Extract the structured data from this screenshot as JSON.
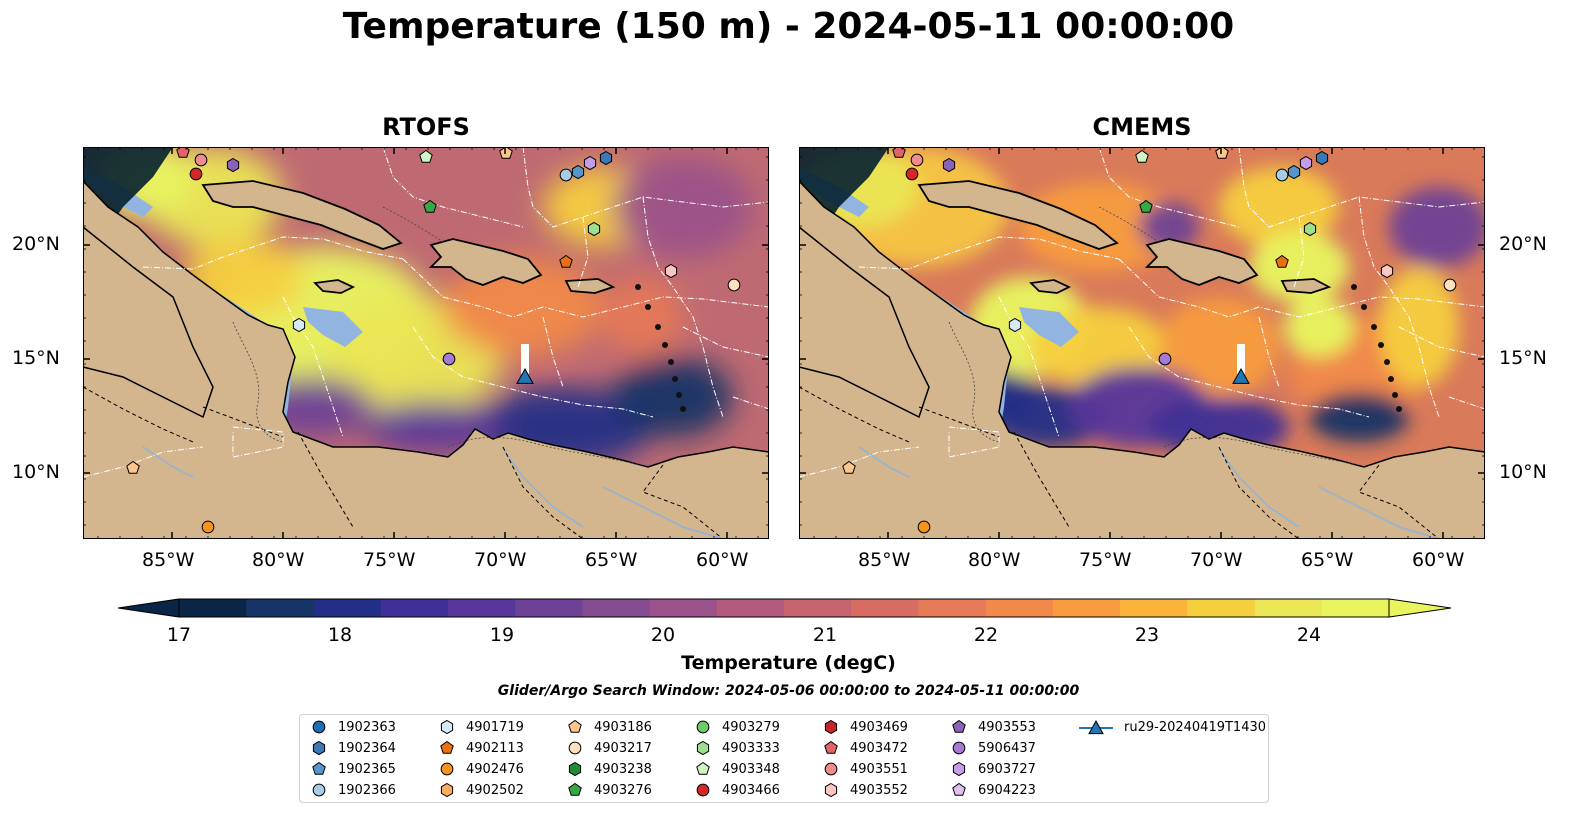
{
  "figure": {
    "title": "Temperature (150 m) - 2024-05-11 00:00:00",
    "panels": [
      {
        "title": "RTOFS",
        "variant": "rtofs"
      },
      {
        "title": "CMEMS",
        "variant": "cmems"
      }
    ],
    "lon_ticks": [
      "85°W",
      "80°W",
      "75°W",
      "70°W",
      "65°W",
      "60°W"
    ],
    "lat_ticks": [
      "20°N",
      "15°N",
      "10°N"
    ],
    "colorbar": {
      "label": "Temperature (degC)",
      "ticks": [
        "17",
        "18",
        "19",
        "20",
        "21",
        "22",
        "23",
        "24"
      ],
      "colors": [
        "#0b2546",
        "#163466",
        "#232e87",
        "#3e3096",
        "#58379a",
        "#6d4296",
        "#844b91",
        "#9b5189",
        "#b25a7e",
        "#c5636f",
        "#d76c62",
        "#e67956",
        "#f1894a",
        "#f89c3f",
        "#fbb339",
        "#f6cf3e",
        "#eae654",
        "#e8f55f"
      ]
    },
    "search_window": "Glider/Argo Search Window: 2024-05-06 00:00:00 to 2024-05-11 00:00:00",
    "map_colors": {
      "land": "#d3b68e",
      "shelf": "#92b4e0",
      "deep_ocean": "#04202f",
      "coast": "#000000",
      "boundary": "#ffffff"
    }
  },
  "legend": [
    {
      "label": "1902363",
      "marker": "circle",
      "color": "#1f6fb4"
    },
    {
      "label": "1902364",
      "marker": "hexagon",
      "color": "#3a79b4"
    },
    {
      "label": "1902365",
      "marker": "pentagon",
      "color": "#5596cc"
    },
    {
      "label": "1902366",
      "marker": "circle",
      "color": "#a8cbe8"
    },
    {
      "label": "4901719",
      "marker": "hexagon",
      "color": "#d7e8f6"
    },
    {
      "label": "4902113",
      "marker": "pentagon",
      "color": "#e8700f"
    },
    {
      "label": "4902476",
      "marker": "circle",
      "color": "#f7941d"
    },
    {
      "label": "4902502",
      "marker": "hexagon",
      "color": "#fbad60"
    },
    {
      "label": "4903186",
      "marker": "pentagon",
      "color": "#fcc58d"
    },
    {
      "label": "4903217",
      "marker": "circle",
      "color": "#fde0c0"
    },
    {
      "label": "4903238",
      "marker": "hexagon",
      "color": "#238b32"
    },
    {
      "label": "4903276",
      "marker": "pentagon",
      "color": "#36a845"
    },
    {
      "label": "4903279",
      "marker": "circle",
      "color": "#6fca6a"
    },
    {
      "label": "4903333",
      "marker": "hexagon",
      "color": "#9fdd8f"
    },
    {
      "label": "4903348",
      "marker": "pentagon",
      "color": "#cff5c4"
    },
    {
      "label": "4903466",
      "marker": "circle",
      "color": "#d62728"
    },
    {
      "label": "4903469",
      "marker": "hexagon",
      "color": "#c4262b"
    },
    {
      "label": "4903472",
      "marker": "pentagon",
      "color": "#e06467"
    },
    {
      "label": "4903551",
      "marker": "circle",
      "color": "#f28c8c"
    },
    {
      "label": "4903552",
      "marker": "hexagon",
      "color": "#fbc7c5"
    },
    {
      "label": "4903553",
      "marker": "pentagon",
      "color": "#8a62b8"
    },
    {
      "label": "5906437",
      "marker": "circle",
      "color": "#a57ad4"
    },
    {
      "label": "6903727",
      "marker": "hexagon",
      "color": "#c49de6"
    },
    {
      "label": "6904223",
      "marker": "pentagon",
      "color": "#dcc0f0"
    },
    {
      "label": "ru29-20240419T1430",
      "marker": "triangle",
      "color": "#1f77b4"
    }
  ]
}
